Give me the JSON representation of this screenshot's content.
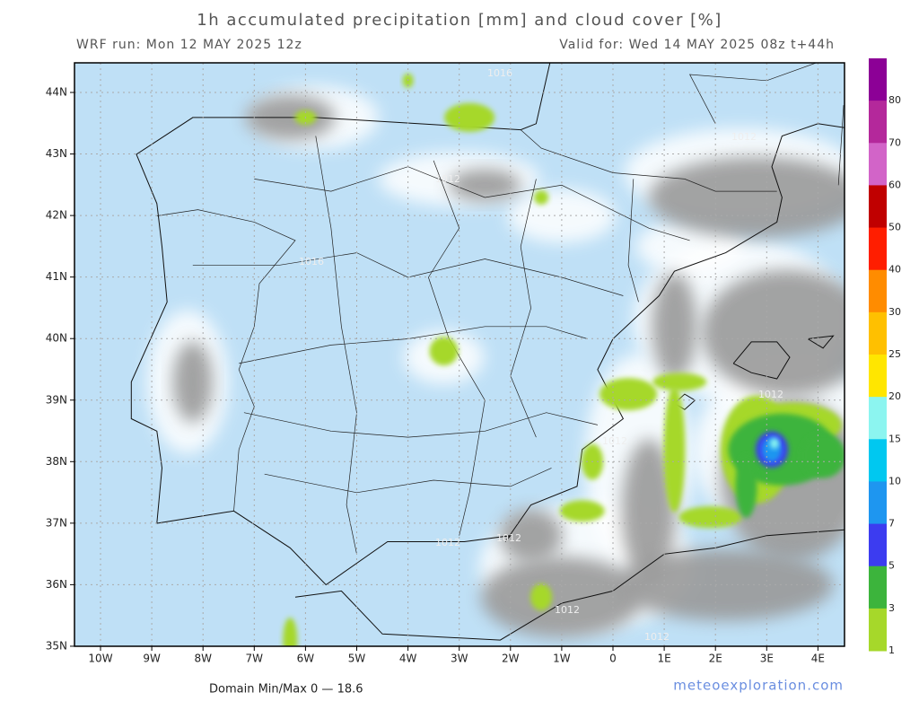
{
  "header": {
    "title": "1h accumulated precipitation [mm] and cloud cover [%]",
    "run": "WRF run: Mon 12 MAY 2025 12z",
    "valid": "Valid for: Wed 14 MAY 2025 08z  t+44h"
  },
  "map": {
    "lat_labels": [
      "44N",
      "43N",
      "42N",
      "41N",
      "40N",
      "39N",
      "38N",
      "37N",
      "36N",
      "35N"
    ],
    "lon_labels": [
      "10W",
      "9W",
      "8W",
      "7W",
      "6W",
      "5W",
      "4W",
      "3W",
      "2W",
      "1W",
      "0",
      "1E",
      "2E",
      "3E",
      "4E"
    ],
    "isobar_labels": [
      "1016",
      "1012",
      "1012",
      "1016",
      "1012",
      "1012",
      "1012",
      "1012",
      "1012",
      "1012"
    ]
  },
  "colorbar": {
    "labels": [
      "80",
      "70",
      "60",
      "50",
      "40",
      "30",
      "25",
      "20",
      "15",
      "10",
      "7",
      "5",
      "3",
      "1"
    ],
    "colors": [
      "#8c0096",
      "#b4289b",
      "#d264c8",
      "#c00000",
      "#ff1e00",
      "#ff8c00",
      "#ffc000",
      "#ffe600",
      "#8cf5f0",
      "#00c8f0",
      "#1e96f0",
      "#3c3cf0",
      "#3cb43c",
      "#a6d82a"
    ]
  },
  "footer": {
    "minmax": "Domain Min/Max 0 — 18.6",
    "credit": "meteoexploration.com"
  }
}
